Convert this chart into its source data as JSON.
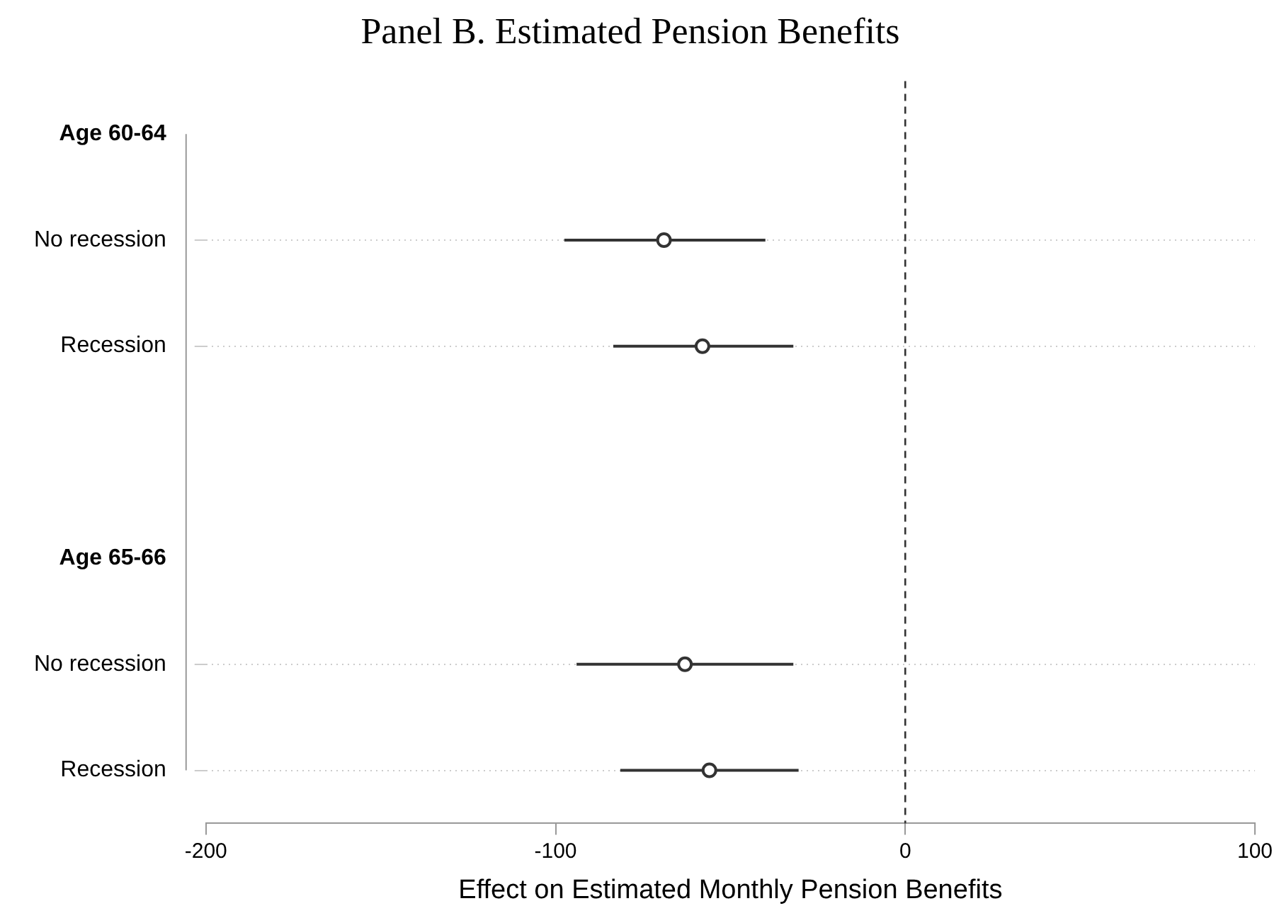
{
  "chart_data": {
    "type": "scatter",
    "title": "Panel B. Estimated Pension Benefits",
    "xlabel": "Effect on Estimated Monthly Pension Benefits",
    "orientation": "horizontal",
    "categories": [
      "Age 60-64",
      "No recession",
      "Recession",
      null,
      "Age 65-66",
      "No recession",
      "Recession"
    ],
    "values": [
      null,
      -69,
      -58,
      null,
      null,
      -63,
      -56
    ],
    "errors": [
      null,
      [
        -97.5,
        -40
      ],
      [
        -83.5,
        -32
      ],
      null,
      null,
      [
        -94,
        -32
      ],
      [
        -81.5,
        -30.5
      ]
    ],
    "color": "#333333",
    "marker": "circle",
    "xlim": [
      -200,
      100
    ],
    "xticks": [
      -200,
      -100,
      0,
      100
    ],
    "grid": "y",
    "legend": false,
    "ref_lines": [
      {
        "axis": "x",
        "value": 0,
        "line_style": "dashed",
        "color": "#333333"
      }
    ]
  }
}
